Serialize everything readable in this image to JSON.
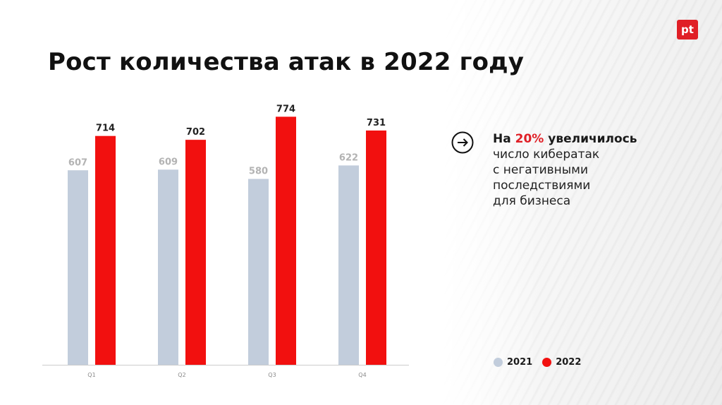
{
  "slide": {
    "title": "Рост количества атак в 2022 году",
    "logo_text": "pt"
  },
  "callout": {
    "prefix": "На ",
    "highlight": "20%",
    "suffix": " увеличилось",
    "lines": [
      "число кибератак",
      "с негативными",
      "последствиями",
      "для бизнеса"
    ],
    "icon": "arrow-right-circle-icon"
  },
  "colors": {
    "series_2021": "#c2cddc",
    "series_2022": "#f2100f",
    "accent": "#e01f26",
    "label_2021": "#b3b3b3",
    "label_2022": "#222222"
  },
  "chart_data": {
    "type": "bar",
    "categories": [
      "Q1",
      "Q2",
      "Q3",
      "Q4"
    ],
    "series": [
      {
        "name": "2021",
        "values": [
          607,
          609,
          580,
          622
        ]
      },
      {
        "name": "2022",
        "values": [
          714,
          702,
          774,
          731
        ]
      }
    ],
    "ylim": [
      0,
      830
    ],
    "grid": false,
    "legend": "bottom-right",
    "title": "",
    "xlabel": "",
    "ylabel": ""
  }
}
